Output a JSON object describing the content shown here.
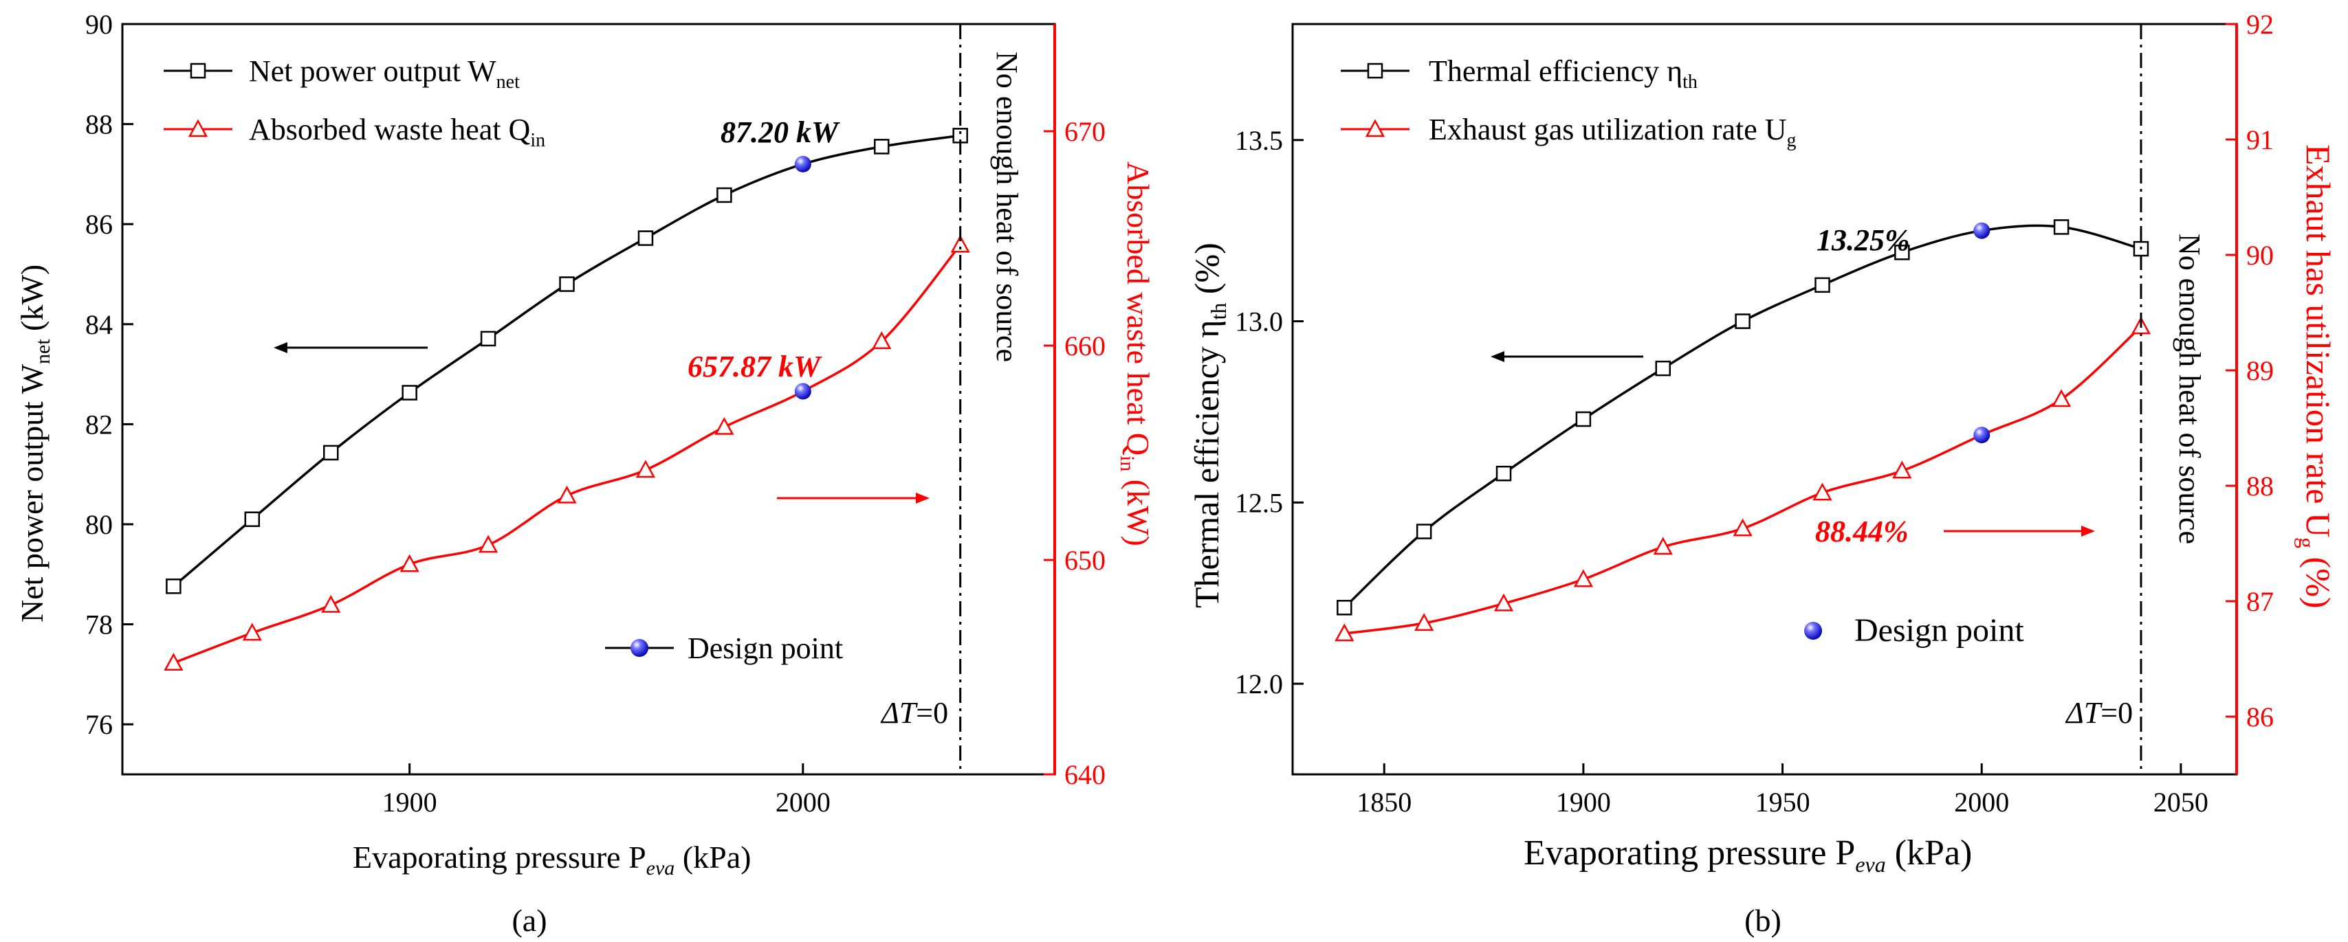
{
  "chart_data": [
    {
      "panel_label": "(a)",
      "type": "line",
      "xlabel": "Evaporating pressure P",
      "xlabel_sub": "eva",
      "xlabel_unit": " (kPa)",
      "xlim": [
        1827,
        2064
      ],
      "x_ticks": [
        1900,
        2000
      ],
      "ylabel_left": "Net power output W",
      "ylabel_left_sub": "net",
      "ylabel_left_unit": " (kW)",
      "ylim_left": [
        75,
        90
      ],
      "y_ticks_left": [
        76,
        78,
        80,
        82,
        84,
        86,
        88,
        90
      ],
      "ylabel_right": "Absorbed waste heat Q",
      "ylabel_right_sub": "in",
      "ylabel_right_unit": " (kW)",
      "ylim_right": [
        640,
        675
      ],
      "y_ticks_right": [
        640,
        650,
        660,
        670
      ],
      "series": [
        {
          "name": "Net power output W",
          "name_sub": "net",
          "axis": "left",
          "color": "#000000",
          "marker": "square",
          "x": [
            1840,
            1860,
            1880,
            1900,
            1920,
            1940,
            1960,
            1980,
            2000,
            2020,
            2040
          ],
          "y": [
            78.76,
            80.1,
            81.43,
            82.63,
            83.71,
            84.8,
            85.72,
            86.58,
            87.2,
            87.55,
            87.77
          ]
        },
        {
          "name": "Absorbed waste heat Q",
          "name_sub": "in",
          "axis": "right",
          "color": "#ff0000",
          "marker": "triangle",
          "x": [
            1840,
            1860,
            1880,
            1900,
            1920,
            1940,
            1960,
            1980,
            2000,
            2020,
            2040
          ],
          "y": [
            645.2,
            646.6,
            647.9,
            649.8,
            650.7,
            653.0,
            654.2,
            656.2,
            657.87,
            660.2,
            664.7
          ]
        }
      ],
      "design_point": {
        "label": "Design point",
        "x": 2000,
        "y_left": 87.2,
        "y_right": 657.87,
        "color": "#1a1aff"
      },
      "annotations": [
        {
          "text": "87.20 kW",
          "color": "#000000"
        },
        {
          "text": "657.87 kW",
          "color": "#ff0000"
        }
      ],
      "vline": {
        "x": 2040,
        "label": "No enough heat of source",
        "delta_label": "ΔT",
        "delta_value": "=0"
      }
    },
    {
      "panel_label": "(b)",
      "type": "line",
      "xlabel": "Evaporating pressure P",
      "xlabel_sub": "eva",
      "xlabel_unit": "  (kPa)",
      "xlim": [
        1827,
        2064
      ],
      "x_ticks": [
        1850,
        1900,
        1950,
        2000,
        2050
      ],
      "ylabel_left": "Thermal efficiency η",
      "ylabel_left_sub": "th",
      "ylabel_left_unit": " (%)",
      "ylim_left": [
        11.75,
        13.82
      ],
      "y_ticks_left": [
        12.0,
        12.5,
        13.0,
        13.5
      ],
      "ylabel_right": "Exhaut has utilization rate U",
      "ylabel_right_sub": "g",
      "ylabel_right_unit": " (%)",
      "ylim_right": [
        85.5,
        92
      ],
      "y_ticks_right": [
        86,
        87,
        88,
        89,
        90,
        91,
        92
      ],
      "series": [
        {
          "name": "Thermal efficiency η",
          "name_sub": "th",
          "axis": "left",
          "color": "#000000",
          "marker": "square",
          "x": [
            1840,
            1860,
            1880,
            1900,
            1920,
            1940,
            1960,
            1980,
            2000,
            2020,
            2040
          ],
          "y": [
            12.21,
            12.42,
            12.58,
            12.73,
            12.87,
            13.0,
            13.1,
            13.19,
            13.25,
            13.26,
            13.2
          ]
        },
        {
          "name": "Exhaust gas utilization rate U",
          "name_sub": "g",
          "axis": "right",
          "color": "#ff0000",
          "marker": "triangle",
          "x": [
            1840,
            1860,
            1880,
            1900,
            1920,
            1940,
            1960,
            1980,
            2000,
            2020,
            2040
          ],
          "y": [
            86.72,
            86.81,
            86.98,
            87.19,
            87.47,
            87.63,
            87.94,
            88.13,
            88.44,
            88.75,
            89.38
          ]
        }
      ],
      "design_point": {
        "label": "Design point",
        "x": 2000,
        "y_left": 13.25,
        "y_right": 88.44,
        "color": "#1a1aff"
      },
      "annotations": [
        {
          "text": "13.25%",
          "color": "#000000"
        },
        {
          "text": "88.44%",
          "color": "#ff0000"
        }
      ],
      "vline": {
        "x": 2040,
        "label": "No enough heat of source",
        "delta_label": "ΔT",
        "delta_value": "=0"
      }
    }
  ]
}
